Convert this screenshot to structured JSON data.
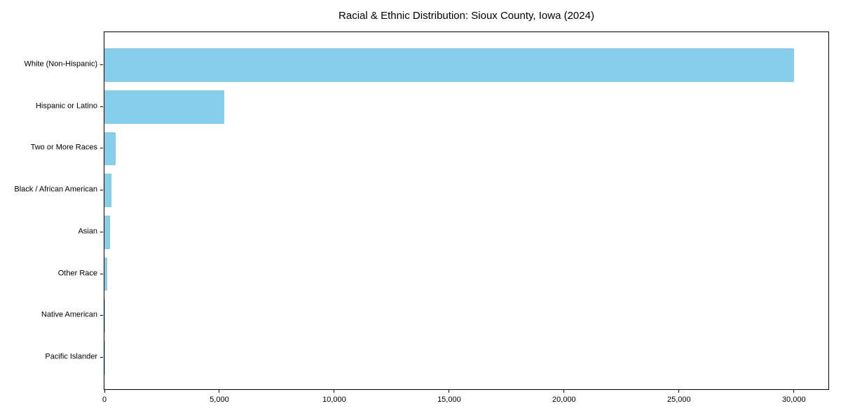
{
  "title": "Racial & Ethnic Distribution: Sioux County, Iowa (2024)",
  "colors": {
    "bar": "#87CEEB",
    "background": "#ffffff",
    "axis": "#000000",
    "text": "#000000"
  },
  "chart_data": {
    "type": "bar",
    "orientation": "horizontal",
    "title": "Racial & Ethnic Distribution: Sioux County, Iowa (2024)",
    "xlabel": "",
    "ylabel": "",
    "categories": [
      "White (Non-Hispanic)",
      "Hispanic or Latino",
      "Two or More Races",
      "Black / African American",
      "Asian",
      "Other Race",
      "Native American",
      "Pacific Islander"
    ],
    "values": [
      30000,
      5200,
      500,
      300,
      240,
      120,
      40,
      15
    ],
    "bar_color": "#87CEEB",
    "xlim": [
      0,
      31500
    ],
    "xticks": [
      0,
      5000,
      10000,
      15000,
      20000,
      25000,
      30000
    ],
    "xtick_labels": [
      "0",
      "5,000",
      "10,000",
      "15,000",
      "20,000",
      "25,000",
      "30,000"
    ],
    "grid": false,
    "legend_position": "none"
  }
}
